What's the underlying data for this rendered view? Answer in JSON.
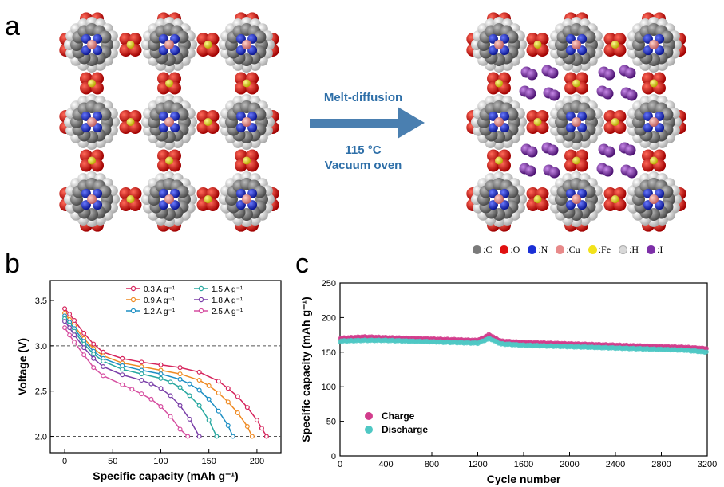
{
  "panel_a": {
    "letter": "a",
    "arrow_text_top": "Melt-diffusion",
    "arrow_text_temp": "115 °C",
    "arrow_text_bottom": "Vacuum oven",
    "legend": [
      {
        "label": ":C",
        "color": "#7a7a7a"
      },
      {
        "label": ":O",
        "color": "#e01010"
      },
      {
        "label": ":N",
        "color": "#1a2fd6"
      },
      {
        "label": ":Cu",
        "color": "#e88a8a"
      },
      {
        "label": ":Fe",
        "color": "#f2e21a"
      },
      {
        "label": ":H",
        "color": "#d8d8d8"
      },
      {
        "label": ":I",
        "color": "#7d2fa8"
      }
    ]
  },
  "panel_b": {
    "letter": "b"
  },
  "panel_c": {
    "letter": "c"
  },
  "chart_data": [
    {
      "type": "line",
      "xlabel": "Specific capacity (mAh g⁻¹)",
      "ylabel": "Voltage (V)",
      "xlim": [
        -15,
        225
      ],
      "ylim": [
        1.82,
        3.72
      ],
      "xticks": [
        0,
        50,
        100,
        150,
        200
      ],
      "yticks": [
        2.0,
        2.5,
        3.0,
        3.5
      ],
      "reference_lines_y": [
        3.0,
        2.0
      ],
      "legend_position": "top",
      "series": [
        {
          "name": "0.3 A g⁻¹",
          "color": "#d6245c",
          "x": [
            0,
            5,
            10,
            20,
            30,
            40,
            60,
            80,
            100,
            120,
            140,
            160,
            170,
            180,
            190,
            200,
            205,
            210
          ],
          "y": [
            3.41,
            3.35,
            3.28,
            3.14,
            3.02,
            2.93,
            2.86,
            2.82,
            2.79,
            2.76,
            2.71,
            2.61,
            2.53,
            2.44,
            2.32,
            2.18,
            2.09,
            2.0
          ]
        },
        {
          "name": "0.9 A g⁻¹",
          "color": "#ef8a22",
          "x": [
            0,
            5,
            10,
            20,
            30,
            40,
            60,
            80,
            100,
            120,
            140,
            150,
            160,
            170,
            180,
            190,
            195
          ],
          "y": [
            3.36,
            3.29,
            3.22,
            3.08,
            2.97,
            2.89,
            2.81,
            2.77,
            2.73,
            2.69,
            2.62,
            2.56,
            2.48,
            2.38,
            2.26,
            2.11,
            2.0
          ]
        },
        {
          "name": "1.2 A g⁻¹",
          "color": "#1e8fc4",
          "x": [
            0,
            5,
            10,
            20,
            30,
            40,
            60,
            80,
            100,
            120,
            130,
            140,
            150,
            160,
            170,
            175
          ],
          "y": [
            3.33,
            3.26,
            3.19,
            3.05,
            2.94,
            2.86,
            2.78,
            2.73,
            2.69,
            2.63,
            2.58,
            2.51,
            2.41,
            2.28,
            2.12,
            2.0
          ]
        },
        {
          "name": "1.5 A g⁻¹",
          "color": "#28a8a0",
          "x": [
            0,
            5,
            10,
            20,
            30,
            40,
            60,
            80,
            100,
            110,
            120,
            130,
            140,
            150,
            158
          ],
          "y": [
            3.3,
            3.23,
            3.16,
            3.02,
            2.91,
            2.83,
            2.74,
            2.69,
            2.64,
            2.6,
            2.54,
            2.45,
            2.34,
            2.18,
            2.0
          ]
        },
        {
          "name": "1.8 A g⁻¹",
          "color": "#7a3fa8",
          "x": [
            0,
            5,
            10,
            20,
            30,
            40,
            60,
            80,
            90,
            100,
            110,
            120,
            130,
            140
          ],
          "y": [
            3.27,
            3.2,
            3.12,
            2.98,
            2.86,
            2.77,
            2.68,
            2.62,
            2.58,
            2.53,
            2.45,
            2.34,
            2.19,
            2.0
          ]
        },
        {
          "name": "2.5 A g⁻¹",
          "color": "#d64ea0",
          "x": [
            0,
            5,
            10,
            20,
            30,
            40,
            60,
            70,
            80,
            90,
            100,
            110,
            120,
            128
          ],
          "y": [
            3.2,
            3.12,
            3.04,
            2.9,
            2.76,
            2.67,
            2.57,
            2.52,
            2.47,
            2.41,
            2.33,
            2.22,
            2.08,
            2.0
          ]
        }
      ]
    },
    {
      "type": "scatter",
      "xlabel": "Cycle number",
      "ylabel": "Specific capacity (mAh g⁻¹)",
      "xlim": [
        0,
        3200
      ],
      "ylim": [
        0,
        250
      ],
      "xticks": [
        0,
        400,
        800,
        1200,
        1600,
        2000,
        2400,
        2800,
        3200
      ],
      "yticks": [
        0,
        50,
        100,
        150,
        200,
        250
      ],
      "legend_position": "bottom-left",
      "series": [
        {
          "name": "Charge",
          "color": "#d23c8c",
          "x": [
            1,
            200,
            400,
            600,
            800,
            1000,
            1200,
            1300,
            1400,
            1600,
            1800,
            2000,
            2200,
            2400,
            2600,
            2800,
            3000,
            3200
          ],
          "y": [
            170,
            172,
            171,
            170,
            169,
            168,
            167,
            175,
            166,
            164,
            163,
            162,
            161,
            160,
            159,
            158,
            157,
            155
          ]
        },
        {
          "name": "Discharge",
          "color": "#4fc8c4",
          "x": [
            1,
            200,
            400,
            600,
            800,
            1000,
            1200,
            1300,
            1400,
            1600,
            1800,
            2000,
            2200,
            2400,
            2600,
            2800,
            3000,
            3200
          ],
          "y": [
            166,
            167,
            167,
            166,
            165,
            164,
            163,
            170,
            162,
            160,
            159,
            158,
            157,
            156,
            155,
            154,
            153,
            150
          ]
        }
      ]
    }
  ]
}
